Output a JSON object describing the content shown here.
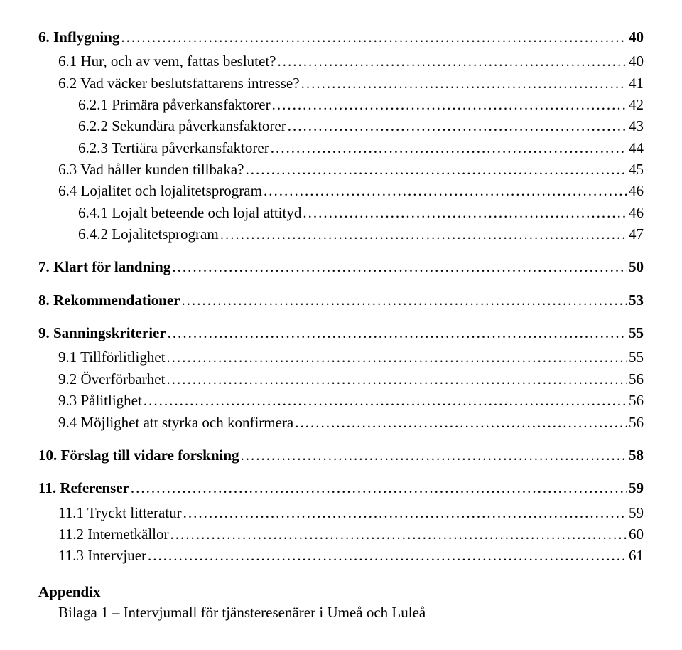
{
  "dots_fill": "................................................................................................................................................................................................................................................",
  "toc": [
    {
      "level": 1,
      "num": "6.",
      "title": "Inflygning",
      "page": "40"
    },
    {
      "level": 2,
      "num": "6.1",
      "title": "Hur, och av vem, fattas beslutet?",
      "page": "40"
    },
    {
      "level": 2,
      "num": "6.2",
      "title": "Vad väcker beslutsfattarens intresse?",
      "page": "41"
    },
    {
      "level": 3,
      "num": "6.2.1",
      "title": "Primära påverkansfaktorer",
      "page": "42"
    },
    {
      "level": 3,
      "num": "6.2.2",
      "title": "Sekundära påverkansfaktorer",
      "page": "43"
    },
    {
      "level": 3,
      "num": "6.2.3",
      "title": "Tertiära påverkansfaktorer",
      "page": "44"
    },
    {
      "level": 2,
      "num": "6.3",
      "title": "Vad håller kunden tillbaka?",
      "page": "45"
    },
    {
      "level": 2,
      "num": "6.4",
      "title": "Lojalitet och lojalitetsprogram",
      "page": "46"
    },
    {
      "level": 3,
      "num": "6.4.1",
      "title": "Lojalt beteende och lojal attityd",
      "page": "46"
    },
    {
      "level": 3,
      "num": "6.4.2",
      "title": "Lojalitetsprogram",
      "page": "47"
    },
    {
      "level": 1,
      "num": "7.",
      "title": "Klart för landning",
      "page": "50"
    },
    {
      "level": 1,
      "num": "8.",
      "title": "Rekommendationer",
      "page": "53"
    },
    {
      "level": 1,
      "num": "9.",
      "title": "Sanningskriterier",
      "page": "55"
    },
    {
      "level": 2,
      "num": "9.1",
      "title": "Tillförlitlighet",
      "page": "55"
    },
    {
      "level": 2,
      "num": "9.2",
      "title": "Överförbarhet",
      "page": "56"
    },
    {
      "level": 2,
      "num": "9.3",
      "title": "Pålitlighet",
      "page": "56"
    },
    {
      "level": 2,
      "num": "9.4",
      "title": "Möjlighet att styrka och konfirmera",
      "page": "56"
    },
    {
      "level": 1,
      "num": "10.",
      "title": "Förslag till vidare forskning",
      "page": "58"
    },
    {
      "level": 1,
      "num": "11.",
      "title": "Referenser",
      "page": "59"
    },
    {
      "level": 2,
      "num": "11.1",
      "title": "Tryckt litteratur",
      "page": "59"
    },
    {
      "level": 2,
      "num": "11.2",
      "title": "Internetkällor",
      "page": "60"
    },
    {
      "level": 2,
      "num": "11.3",
      "title": "Intervjuer",
      "page": "61"
    }
  ],
  "appendix": {
    "heading": "Appendix",
    "lines": [
      "Bilaga 1 – Intervjumall för tjänsteresenärer i Umeå och Luleå"
    ]
  }
}
